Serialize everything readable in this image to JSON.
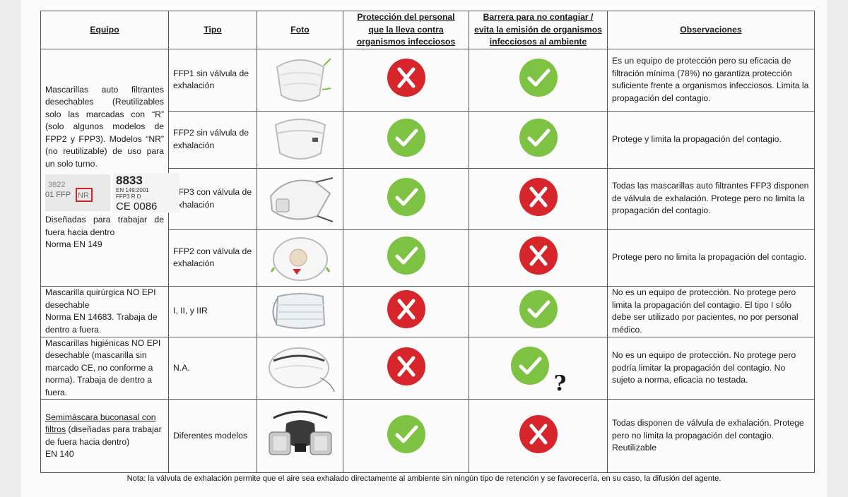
{
  "headers": {
    "equipo": "Equipo",
    "tipo": "Tipo",
    "foto": "Foto",
    "proteccion": [
      "Protección del personal",
      "que la lleva contra",
      "organismos infecciosos"
    ],
    "barrera": [
      "Barrera para no contagiar /",
      "evita la emisión de organismos",
      "infecciosos al ambiente"
    ],
    "observaciones": "Observaciones"
  },
  "group1": {
    "equipo_text": "Mascarillas auto filtrantes desechables (Reutilizables solo las marcadas con “R” (solo algunos modelos de FPP2 y FPP3). Modelos “NR” (no reutilizable) de uso para un solo turno.",
    "label_left_top": "3822",
    "label_left_bottom": "01 FFP",
    "label_nr": "NR",
    "label_right_top": "8833",
    "label_right_mid": "EN 149:2001",
    "label_right_mid2": "FFP3 R D",
    "label_right_ce": "CE 0086",
    "equipo_text2": "Diseñadas para trabajar de fuera hacia dentro",
    "equipo_norma": "Norma EN 149"
  },
  "rows": [
    {
      "tipo": "FFP1 sin válvula de exhalación",
      "foto": "ffp1-mask-photo",
      "proteccion": "no",
      "barrera": "yes",
      "obs": "Es un equipo de protección pero su eficacia de filtración mínima (78%) no garantiza protección suficiente frente a organismos infecciosos. Limita la propagación del contagio."
    },
    {
      "tipo": "FFP2 sin válvula de exhalación",
      "foto": "ffp2-mask-photo",
      "proteccion": "yes",
      "barrera": "yes",
      "obs": "Protege y limita la propagación del contagio."
    },
    {
      "tipo": "FFP3 con válvula de exhalación",
      "foto": "ffp3-valve-mask-photo",
      "proteccion": "yes",
      "barrera": "no",
      "obs": "Todas las mascarillas auto filtrantes FFP3 disponen de válvula de exhalación. Protege pero no limita la propagación del contagio."
    },
    {
      "tipo": "FFP2 con válvula de exhalación",
      "foto": "ffp2-valve-mask-photo",
      "proteccion": "yes",
      "barrera": "no",
      "obs": "Protege pero no limita la propagación del contagio."
    },
    {
      "equipo": [
        "Mascarilla quirúrgica NO EPI desechable",
        "Norma EN 14683. Trabaja de dentro a fuera."
      ],
      "tipo": "I, II, y IIR",
      "foto": "surgical-mask-photo",
      "proteccion": "no",
      "barrera": "yes",
      "obs": "No es un equipo de protección. No protege pero limita la propagación del contagio. El tipo I sólo debe ser utilizado por pacientes, no por personal médico."
    },
    {
      "equipo": [
        "Mascarillas higiénicas NO EPI desechable (mascarilla sin marcado CE, no conforme a norma). Trabaja de dentro a fuera."
      ],
      "tipo": "N.A.",
      "foto": "hygienic-mask-photo",
      "proteccion": "no",
      "barrera": "yes-question",
      "question_mark": "?",
      "obs": "No es un equipo de protección. No protege pero podría limitar la propagación del contagio. No sujeto a norma, eficacia no testada."
    },
    {
      "equipo_u": "Semimáscara buconasal con filtros",
      "equipo_rest": " (diseñadas para trabajar de fuera hacia dentro)",
      "equipo_norma": "EN 140",
      "tipo": "Diferentes modelos",
      "foto": "half-mask-respirator-photo",
      "proteccion": "yes",
      "barrera": "no",
      "obs": "Todas disponen de válvula de exhalación. Protege pero no limita la propagación del contagio. Reutilizable"
    }
  ],
  "note": "Nota: la válvula de exhalación permite que el aire sea exhalado directamente al ambiente sin ningún tipo de retención y se favorecería, en su caso, la difusión del agente.",
  "colors": {
    "yes": "#7dc242",
    "no": "#d7262b",
    "border": "#555555"
  }
}
